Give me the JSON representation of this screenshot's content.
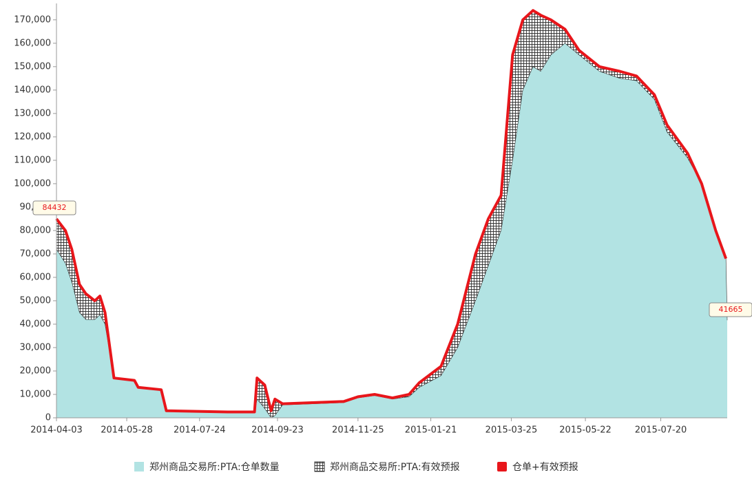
{
  "chart_data": {
    "type": "stacked-area-line",
    "x": [
      "2014-04-03",
      "2014-04-10",
      "2014-04-15",
      "2014-04-21",
      "2014-04-26",
      "2014-05-03",
      "2014-05-07",
      "2014-05-11",
      "2014-05-18",
      "2014-06-03",
      "2014-06-06",
      "2014-06-24",
      "2014-06-28",
      "2014-08-15",
      "2014-09-05",
      "2014-09-07",
      "2014-09-13",
      "2014-09-18",
      "2014-09-21",
      "2014-09-27",
      "2014-11-14",
      "2014-11-25",
      "2014-12-08",
      "2014-12-22",
      "2015-01-04",
      "2015-01-12",
      "2015-01-29",
      "2015-02-11",
      "2015-02-25",
      "2015-03-07",
      "2015-03-17",
      "2015-03-26",
      "2015-04-03",
      "2015-04-11",
      "2015-04-17",
      "2015-04-25",
      "2015-05-06",
      "2015-05-17",
      "2015-06-02",
      "2015-06-18",
      "2015-07-01",
      "2015-07-15",
      "2015-07-25",
      "2015-08-10",
      "2015-08-21",
      "2015-09-01",
      "2015-09-09",
      "2015-09-10"
    ],
    "series": [
      {
        "name": "郑州商品交易所:PTA:仓单数量",
        "color": "#b2e3e3",
        "kind": "area",
        "values": [
          72000,
          66000,
          58000,
          45000,
          42000,
          42000,
          44000,
          40000,
          17000,
          16000,
          13000,
          12000,
          3000,
          2500,
          2000,
          8000,
          4000,
          0,
          1000,
          5500,
          6500,
          8500,
          9500,
          8000,
          9000,
          13000,
          18000,
          30000,
          50000,
          65000,
          80000,
          110000,
          140000,
          150000,
          148000,
          155000,
          160000,
          155000,
          148000,
          145000,
          144000,
          136000,
          122000,
          111000,
          100000,
          80000,
          68000,
          41665
        ]
      },
      {
        "name": "郑州商品交易所:PTA:有效预报",
        "color": "#222222",
        "kind": "hatch",
        "values": [
          13000,
          14000,
          14000,
          12000,
          11000,
          8000,
          8000,
          5000,
          0,
          0,
          0,
          0,
          0,
          0,
          500,
          9000,
          10000,
          3000,
          7000,
          500,
          500,
          500,
          500,
          500,
          1000,
          2000,
          4000,
          10000,
          20000,
          20000,
          15000,
          45000,
          30000,
          24000,
          24000,
          15000,
          6000,
          2000,
          2000,
          3000,
          2000,
          2000,
          3000,
          2000,
          0,
          0,
          0,
          0
        ]
      },
      {
        "name": "仓单+有效预报",
        "color": "#e8161b",
        "kind": "line",
        "values": [
          85000,
          80000,
          72000,
          57000,
          53000,
          50000,
          52000,
          45000,
          17000,
          16000,
          13000,
          12000,
          3000,
          2500,
          2500,
          17000,
          14000,
          3000,
          8000,
          6000,
          7000,
          9000,
          10000,
          8500,
          10000,
          15000,
          22000,
          40000,
          70000,
          85000,
          95000,
          155000,
          170000,
          174000,
          172000,
          170000,
          166000,
          157000,
          150000,
          148000,
          146000,
          138000,
          125000,
          113000,
          100000,
          80000,
          68000,
          null
        ]
      }
    ],
    "xlim": [
      "2014-04-03",
      "2015-09-10"
    ],
    "xticks": [
      "2014-04-03",
      "2014-05-28",
      "2014-07-24",
      "2014-09-23",
      "2014-11-25",
      "2015-01-21",
      "2015-03-25",
      "2015-05-22",
      "2015-07-20"
    ],
    "ylim": [
      0,
      177000
    ],
    "yticks": [
      0,
      {
        "value": 10000,
        "label": "10,000"
      },
      {
        "value": 20000,
        "label": "20,000"
      },
      {
        "value": 30000,
        "label": "30,000"
      },
      {
        "value": 40000,
        "label": "40,000"
      },
      {
        "value": 50000,
        "label": "50,000"
      },
      {
        "value": 60000,
        "label": "60,000"
      },
      {
        "value": 70000,
        "label": "70,000"
      },
      {
        "value": 80000,
        "label": "80,000"
      },
      {
        "value": 90000,
        "label": "90,000"
      },
      {
        "value": 100000,
        "label": "100,000"
      },
      {
        "value": 110000,
        "label": "110,000"
      },
      {
        "value": 120000,
        "label": "120,000"
      },
      {
        "value": 130000,
        "label": "130,000"
      },
      {
        "value": 140000,
        "label": "140,000"
      },
      {
        "value": 150000,
        "label": "150,000"
      },
      {
        "value": 160000,
        "label": "160,000"
      },
      {
        "value": 170000,
        "label": "170,000"
      }
    ],
    "annotations": [
      "84432",
      "41665"
    ],
    "legend": "bottom"
  }
}
